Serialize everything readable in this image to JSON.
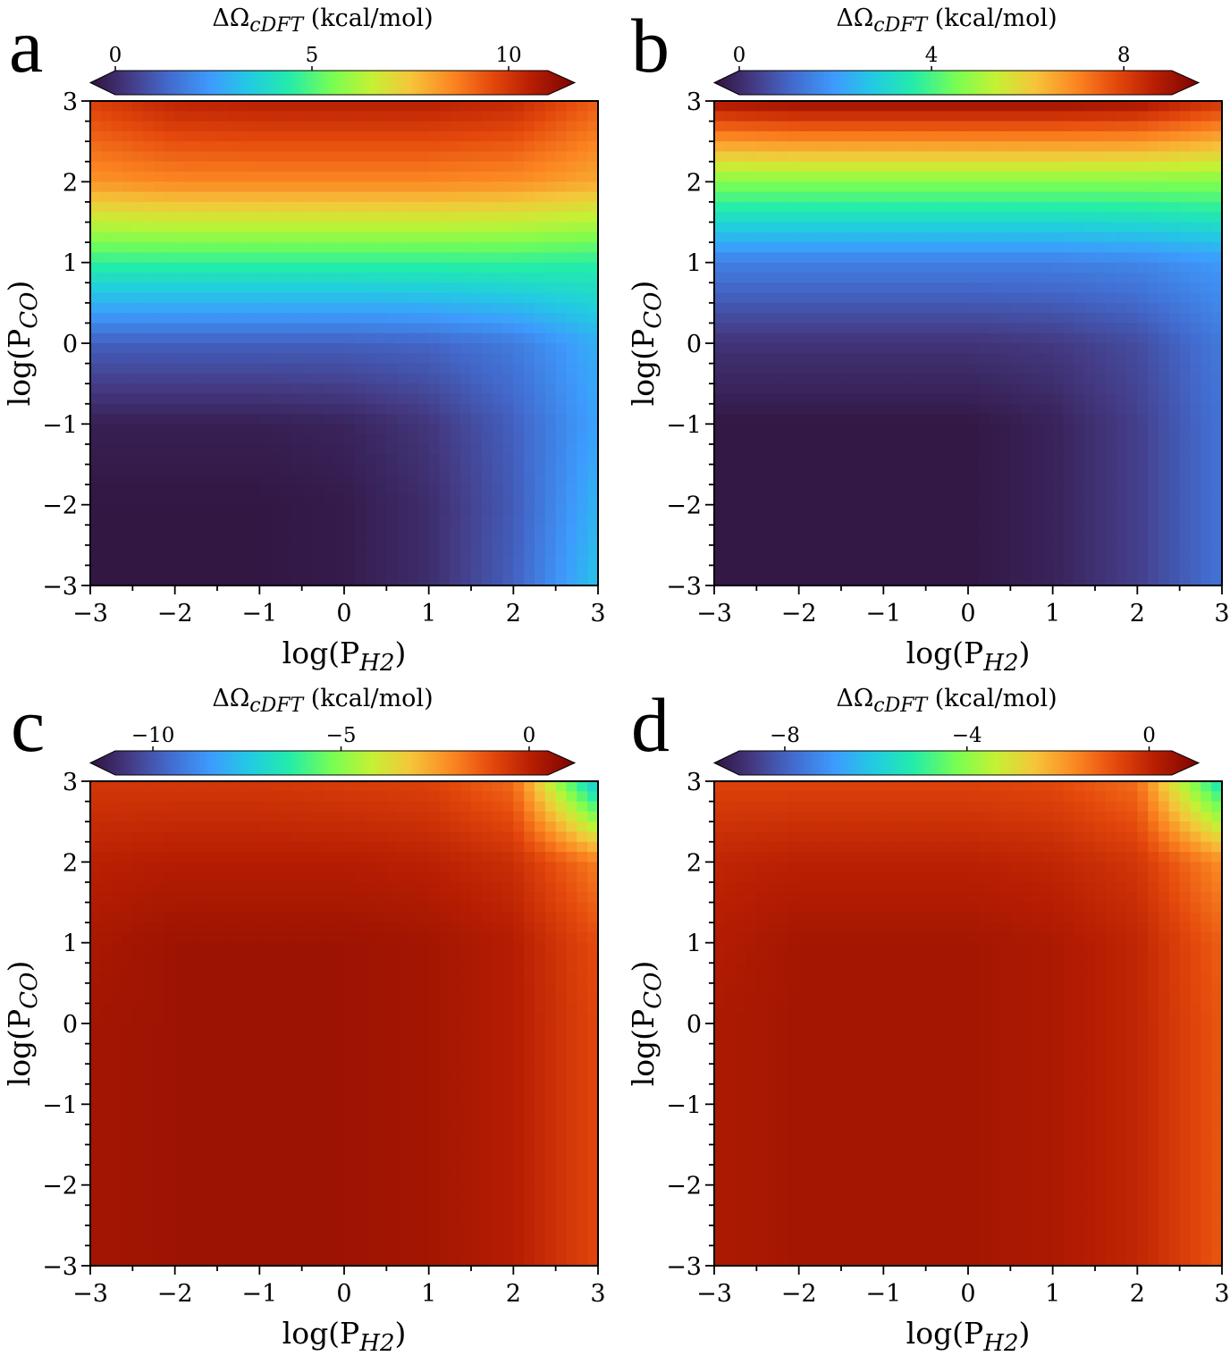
{
  "figure": {
    "panels": [
      {
        "letter": "a",
        "colorbar": {
          "title_main": "ΔΩ",
          "title_sub": "cDFT",
          "title_unit": " (kcal/mol)",
          "ticks": [
            "0",
            "5",
            "10"
          ],
          "tick_values": [
            0,
            5,
            10
          ],
          "range": [
            0,
            11
          ],
          "extend": "both"
        },
        "xlabel_main": "log(P",
        "xlabel_sub": "H2",
        "xlabel_end": ")",
        "ylabel_main": "log(P",
        "ylabel_sub": "CO",
        "ylabel_end": ")",
        "xticks": [
          "−3",
          "−2",
          "−1",
          "0",
          "1",
          "2",
          "3"
        ],
        "yticks": [
          "3",
          "2",
          "1",
          "0",
          "−1",
          "−2",
          "−3"
        ]
      },
      {
        "letter": "b",
        "colorbar": {
          "title_main": "ΔΩ",
          "title_sub": "cDFT",
          "title_unit": " (kcal/mol)",
          "ticks": [
            "0",
            "4",
            "8"
          ],
          "tick_values": [
            0,
            4,
            8
          ],
          "range": [
            0,
            9
          ],
          "extend": "both"
        },
        "xlabel_main": "log(P",
        "xlabel_sub": "H2",
        "xlabel_end": ")",
        "ylabel_main": "log(P",
        "ylabel_sub": "CO",
        "ylabel_end": ")",
        "xticks": [
          "−3",
          "−2",
          "−1",
          "0",
          "1",
          "2",
          "3"
        ],
        "yticks": [
          "3",
          "2",
          "1",
          "0",
          "−1",
          "−2",
          "−3"
        ]
      },
      {
        "letter": "c",
        "colorbar": {
          "title_main": "ΔΩ",
          "title_sub": "cDFT",
          "title_unit": " (kcal/mol)",
          "ticks": [
            "−10",
            "−5",
            "0"
          ],
          "tick_values": [
            -10,
            -5,
            0
          ],
          "range": [
            -11,
            0.5
          ],
          "extend": "both"
        },
        "xlabel_main": "log(P",
        "xlabel_sub": "H2",
        "xlabel_end": ")",
        "ylabel_main": "log(P",
        "ylabel_sub": "CO",
        "ylabel_end": ")",
        "xticks": [
          "−3",
          "−2",
          "−1",
          "0",
          "1",
          "2",
          "3"
        ],
        "yticks": [
          "3",
          "2",
          "1",
          "0",
          "−1",
          "−2",
          "−3"
        ]
      },
      {
        "letter": "d",
        "colorbar": {
          "title_main": "ΔΩ",
          "title_sub": "cDFT",
          "title_unit": " (kcal/mol)",
          "ticks": [
            "−8",
            "−4",
            "0"
          ],
          "tick_values": [
            -8,
            -4,
            0
          ],
          "range": [
            -9,
            0.5
          ],
          "extend": "both"
        },
        "xlabel_main": "log(P",
        "xlabel_sub": "H2",
        "xlabel_end": ")",
        "ylabel_main": "log(P",
        "ylabel_sub": "CO",
        "ylabel_end": ")",
        "xticks": [
          "−3",
          "−2",
          "−1",
          "0",
          "1",
          "2",
          "3"
        ],
        "yticks": [
          "3",
          "2",
          "1",
          "0",
          "−1",
          "−2",
          "−3"
        ]
      }
    ]
  },
  "chart_data": [
    {
      "type": "heatmap",
      "panel": "a",
      "colormap": "turbo",
      "x": [
        -3,
        -2,
        -1,
        0,
        1,
        2,
        3
      ],
      "y": [
        3,
        2,
        1,
        0,
        -1,
        -2,
        -3
      ],
      "z": [
        [
          9.3,
          9.9,
          10.0,
          10.0,
          10.0,
          9.8,
          8.8
        ],
        [
          8.0,
          8.2,
          8.2,
          8.2,
          8.2,
          8.1,
          7.7
        ],
        [
          4.7,
          4.7,
          4.7,
          4.7,
          4.7,
          4.7,
          4.6
        ],
        [
          1.6,
          1.6,
          1.6,
          1.6,
          1.7,
          2.1,
          3.1
        ],
        [
          0.3,
          0.3,
          0.3,
          0.4,
          0.8,
          1.6,
          2.9
        ],
        [
          0.1,
          0.1,
          0.1,
          0.2,
          0.6,
          1.5,
          3.2
        ],
        [
          0.1,
          0.1,
          0.1,
          0.2,
          0.6,
          1.6,
          3.5
        ]
      ],
      "xlabel": "log(PH2)",
      "ylabel": "log(PCO)",
      "xlim": [
        -3,
        3
      ],
      "ylim": [
        -3,
        3
      ],
      "colorbar_label": "ΔΩcDFT (kcal/mol)"
    },
    {
      "type": "heatmap",
      "panel": "b",
      "colormap": "turbo",
      "x": [
        -3,
        -2,
        -1,
        0,
        1,
        2,
        3
      ],
      "y": [
        3,
        2,
        1,
        0,
        -1,
        -2,
        -3
      ],
      "z": [
        [
          8.4,
          8.6,
          8.6,
          8.6,
          8.6,
          8.5,
          7.8
        ],
        [
          4.6,
          4.6,
          4.6,
          4.6,
          4.6,
          4.6,
          4.6
        ],
        [
          1.8,
          1.8,
          1.8,
          1.8,
          1.8,
          1.9,
          2.2
        ],
        [
          0.6,
          0.6,
          0.6,
          0.6,
          0.7,
          1.0,
          1.7
        ],
        [
          0.1,
          0.1,
          0.1,
          0.1,
          0.3,
          0.8,
          1.6
        ],
        [
          0.1,
          0.1,
          0.1,
          0.1,
          0.3,
          0.8,
          1.6
        ],
        [
          0.1,
          0.1,
          0.1,
          0.1,
          0.3,
          0.8,
          1.6
        ]
      ],
      "xlabel": "log(PH2)",
      "ylabel": "log(PCO)",
      "xlim": [
        -3,
        3
      ],
      "ylim": [
        -3,
        3
      ],
      "colorbar_label": "ΔΩcDFT (kcal/mol)"
    },
    {
      "type": "heatmap",
      "panel": "c",
      "colormap": "turbo",
      "x": [
        -3,
        -2,
        -1,
        0,
        1,
        2,
        3
      ],
      "y": [
        3,
        2,
        1,
        0,
        -1,
        -2,
        -3
      ],
      "z": [
        [
          -1.1,
          -1.1,
          -1.1,
          -1.2,
          -1.3,
          -2.0,
          -7.5
        ],
        [
          -0.6,
          -0.5,
          -0.5,
          -0.5,
          -0.6,
          -0.9,
          -2.3
        ],
        [
          -0.3,
          -0.1,
          -0.1,
          -0.1,
          -0.2,
          -0.5,
          -1.5
        ],
        [
          -0.2,
          -0.1,
          -0.1,
          -0.1,
          -0.2,
          -0.5,
          -1.4
        ],
        [
          -0.2,
          -0.1,
          -0.1,
          -0.1,
          -0.2,
          -0.5,
          -1.4
        ],
        [
          -0.2,
          -0.1,
          -0.1,
          -0.1,
          -0.2,
          -0.5,
          -1.4
        ],
        [
          -0.2,
          -0.1,
          -0.1,
          -0.1,
          -0.2,
          -0.5,
          -1.4
        ]
      ],
      "xlabel": "log(PH2)",
      "ylabel": "log(PCO)",
      "xlim": [
        -3,
        3
      ],
      "ylim": [
        -3,
        3
      ],
      "colorbar_label": "ΔΩcDFT (kcal/mol)"
    },
    {
      "type": "heatmap",
      "panel": "d",
      "colormap": "turbo",
      "x": [
        -3,
        -2,
        -1,
        0,
        1,
        2,
        3
      ],
      "y": [
        3,
        2,
        1,
        0,
        -1,
        -2,
        -3
      ],
      "z": [
        [
          -1.0,
          -1.0,
          -1.0,
          -1.0,
          -1.1,
          -1.6,
          -5.5
        ],
        [
          -0.5,
          -0.4,
          -0.4,
          -0.4,
          -0.5,
          -0.8,
          -2.0
        ],
        [
          -0.3,
          -0.1,
          -0.1,
          -0.1,
          -0.2,
          -0.5,
          -1.4
        ],
        [
          -0.2,
          -0.1,
          -0.1,
          -0.1,
          -0.2,
          -0.5,
          -1.3
        ],
        [
          -0.2,
          -0.1,
          -0.1,
          -0.1,
          -0.2,
          -0.5,
          -1.3
        ],
        [
          -0.2,
          -0.1,
          -0.1,
          -0.1,
          -0.2,
          -0.5,
          -1.3
        ],
        [
          -0.2,
          -0.1,
          -0.1,
          -0.1,
          -0.2,
          -0.5,
          -1.3
        ]
      ],
      "xlabel": "log(PH2)",
      "ylabel": "log(PCO)",
      "xlim": [
        -3,
        3
      ],
      "ylim": [
        -3,
        3
      ],
      "colorbar_label": "ΔΩcDFT (kcal/mol)"
    }
  ]
}
